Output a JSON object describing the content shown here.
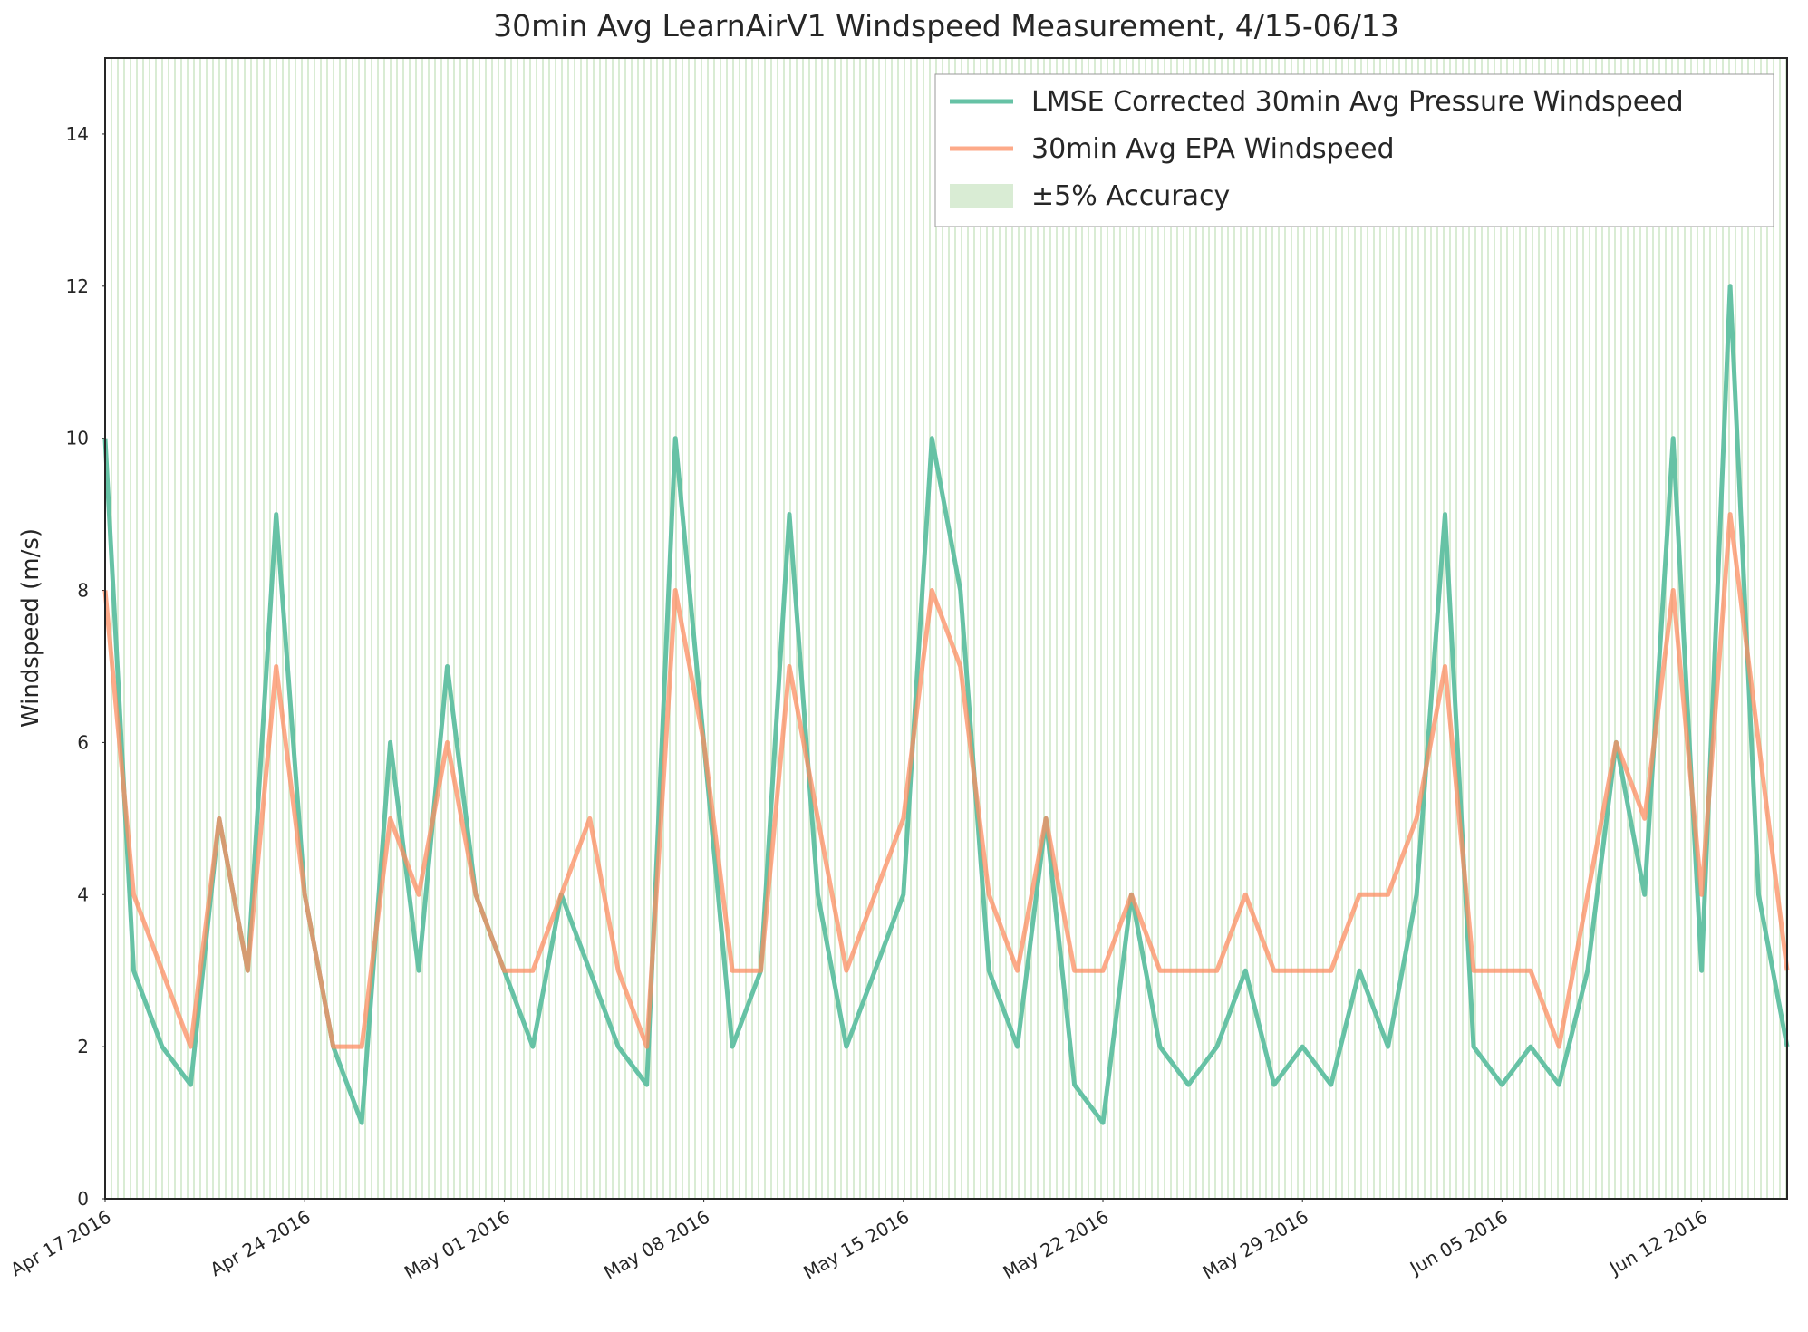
{
  "chart_data": {
    "type": "line",
    "title": "30min Avg LearnAirV1 Windspeed Measurement, 4/15-06/13",
    "y_label": "Windspeed (m/s)",
    "x": [
      "2016-04-17",
      "2016-04-18",
      "2016-04-19",
      "2016-04-20",
      "2016-04-21",
      "2016-04-22",
      "2016-04-23",
      "2016-04-24",
      "2016-04-25",
      "2016-04-26",
      "2016-04-27",
      "2016-04-28",
      "2016-04-29",
      "2016-04-30",
      "2016-05-01",
      "2016-05-02",
      "2016-05-03",
      "2016-05-04",
      "2016-05-05",
      "2016-05-06",
      "2016-05-07",
      "2016-05-08",
      "2016-05-09",
      "2016-05-10",
      "2016-05-11",
      "2016-05-12",
      "2016-05-13",
      "2016-05-14",
      "2016-05-15",
      "2016-05-16",
      "2016-05-17",
      "2016-05-18",
      "2016-05-19",
      "2016-05-20",
      "2016-05-21",
      "2016-05-22",
      "2016-05-23",
      "2016-05-24",
      "2016-05-25",
      "2016-05-26",
      "2016-05-27",
      "2016-05-28",
      "2016-05-29",
      "2016-05-30",
      "2016-05-31",
      "2016-06-01",
      "2016-06-02",
      "2016-06-03",
      "2016-06-04",
      "2016-06-05",
      "2016-06-06",
      "2016-06-07",
      "2016-06-08",
      "2016-06-09",
      "2016-06-10",
      "2016-06-11",
      "2016-06-12",
      "2016-06-13",
      "2016-06-14",
      "2016-06-15"
    ],
    "series": [
      {
        "name": "LMSE Corrected 30min Avg Pressure Windspeed",
        "color": "#66c2a5",
        "values": [
          10,
          3,
          2,
          1.5,
          5,
          3,
          9,
          4,
          2,
          1,
          6,
          3,
          7,
          4,
          3,
          2,
          4,
          3,
          2,
          1.5,
          10,
          6,
          2,
          3,
          9,
          4,
          2,
          3,
          4,
          10,
          8,
          3,
          2,
          5,
          1.5,
          1,
          4,
          2,
          1.5,
          2,
          3,
          1.5,
          2,
          1.5,
          3,
          2,
          4,
          9,
          2,
          1.5,
          2,
          1.5,
          3,
          6,
          4,
          10,
          3,
          12,
          4,
          2
        ]
      },
      {
        "name": "30min Avg EPA Windspeed",
        "color": "#fc8d62",
        "values": [
          8,
          4,
          3,
          2,
          5,
          3,
          7,
          4,
          2,
          2,
          5,
          4,
          6,
          4,
          3,
          3,
          4,
          5,
          3,
          2,
          8,
          6,
          3,
          3,
          7,
          5,
          3,
          4,
          5,
          8,
          7,
          4,
          3,
          5,
          3,
          3,
          4,
          3,
          3,
          3,
          4,
          3,
          3,
          3,
          4,
          4,
          5,
          7,
          3,
          3,
          3,
          2,
          4,
          6,
          5,
          8,
          4,
          9,
          6,
          3
        ]
      }
    ],
    "band_name": "±5% Accuracy",
    "band_color": "#d9ecd4",
    "xlim": [
      "2016-04-17",
      "2016-06-15"
    ],
    "xticks": [
      {
        "value": "2016-04-17",
        "label": "Apr 17 2016"
      },
      {
        "value": "2016-04-24",
        "label": "Apr 24 2016"
      },
      {
        "value": "2016-05-01",
        "label": "May 01 2016"
      },
      {
        "value": "2016-05-08",
        "label": "May 08 2016"
      },
      {
        "value": "2016-05-15",
        "label": "May 15 2016"
      },
      {
        "value": "2016-05-22",
        "label": "May 22 2016"
      },
      {
        "value": "2016-05-29",
        "label": "May 29 2016"
      },
      {
        "value": "2016-06-05",
        "label": "Jun 05 2016"
      },
      {
        "value": "2016-06-12",
        "label": "Jun 12 2016"
      }
    ],
    "ylim": [
      0,
      15
    ],
    "yticks": [
      0,
      2,
      4,
      6,
      8,
      10,
      12,
      14
    ],
    "legend": "upper right"
  }
}
